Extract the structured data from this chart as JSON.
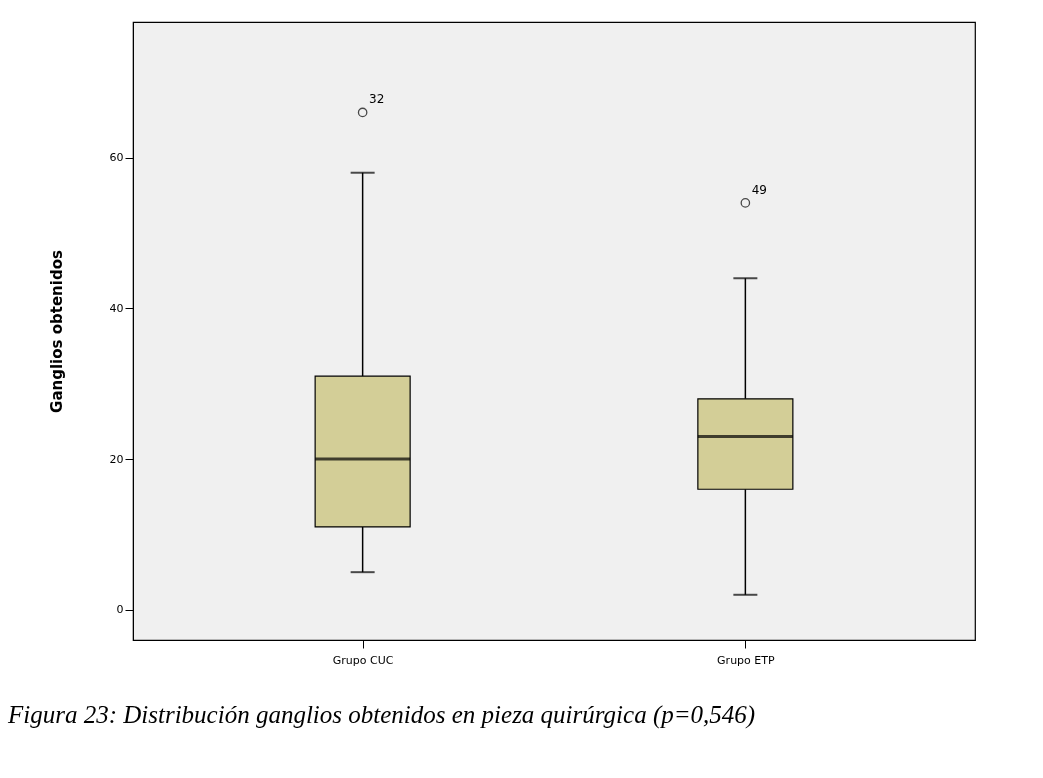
{
  "chart_data": {
    "type": "box",
    "categories": [
      "Grupo CUC",
      "Grupo ETP"
    ],
    "color": "#d3ce97",
    "boxes": [
      {
        "low": 5,
        "q1": 11,
        "median": 20,
        "q3": 31,
        "high": 58,
        "outliers": [
          66
        ]
      },
      {
        "low": 2,
        "q1": 16,
        "median": 23,
        "q3": 28,
        "high": 44,
        "outliers": [
          54
        ]
      }
    ],
    "ylabel": "Ganglios obtenidos",
    "ylim": [
      -4,
      78
    ],
    "yticks": [
      0,
      20,
      40,
      60
    ],
    "grid": false,
    "annotations": [
      "32",
      "49",
      "Figura 23: Distribución ganglios  obtenidos en pieza quirúrgica (p=0,546)"
    ]
  }
}
